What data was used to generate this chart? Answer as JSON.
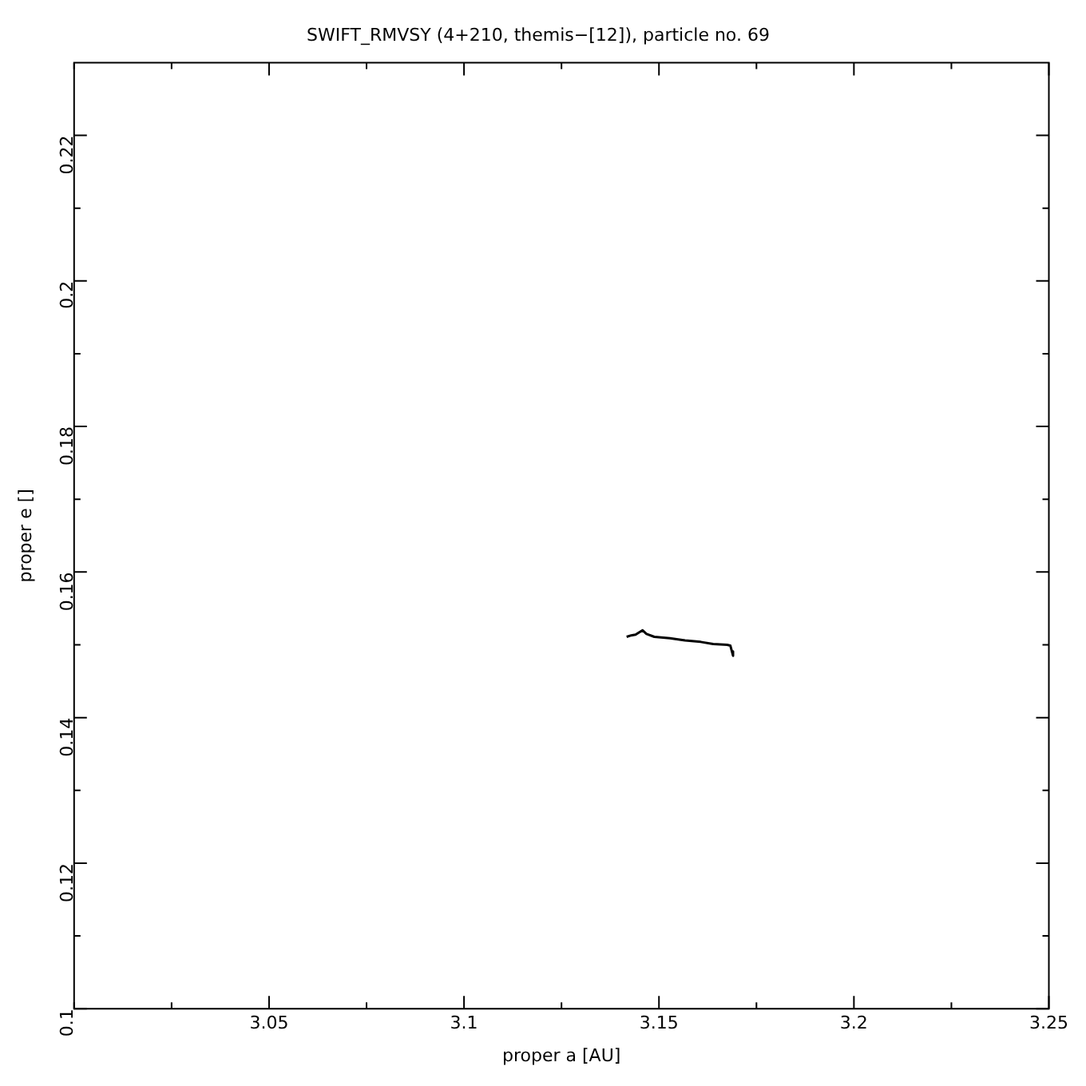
{
  "chart_data": {
    "type": "line",
    "title": "SWIFT_RMVSY (4+210, themis−[12]), particle no. 69",
    "xlabel": "proper a [AU]",
    "ylabel": "proper e []",
    "xlim": [
      3.0,
      3.25
    ],
    "ylim": [
      0.1,
      0.23
    ],
    "xticks": [
      {
        "value": 3.0,
        "label": null
      },
      {
        "value": 3.025,
        "label": null
      },
      3.05,
      {
        "value": 3.075,
        "label": null
      },
      3.1,
      {
        "value": 3.125,
        "label": null
      },
      3.15,
      {
        "value": 3.175,
        "label": null
      },
      3.2,
      {
        "value": 3.225,
        "label": null
      },
      3.25
    ],
    "yticks": [
      0.1,
      {
        "value": 0.11,
        "label": null
      },
      0.12,
      {
        "value": 0.13,
        "label": null
      },
      0.14,
      {
        "value": 0.15,
        "label": null
      },
      0.16,
      {
        "value": 0.17,
        "label": null
      },
      0.18,
      {
        "value": 0.19,
        "label": null
      },
      0.2,
      {
        "value": 0.21,
        "label": null
      },
      0.22
    ],
    "grid": false,
    "legend": false,
    "marker": "none",
    "line_style": "solid",
    "series": [
      {
        "color": "#000000",
        "x": [
          3.1417,
          3.1429,
          3.144,
          3.1458,
          3.1468,
          3.1488,
          3.1528,
          3.1567,
          3.1607,
          3.1639,
          3.1675,
          3.1683,
          3.1687,
          3.169
        ],
        "values": [
          0.1511,
          0.1513,
          0.1514,
          0.152,
          0.1515,
          0.1511,
          0.1509,
          0.1506,
          0.1504,
          0.1501,
          0.15,
          0.1499,
          0.1491,
          0.1485
        ]
      }
    ]
  }
}
